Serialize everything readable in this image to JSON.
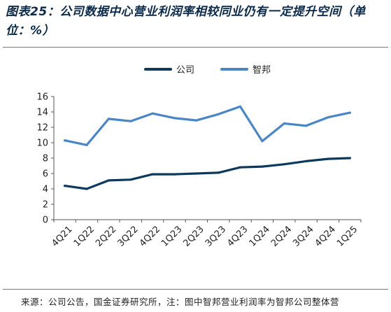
{
  "title": "图表25：公司数据中心营业利润率相较同业仍有一定提升空间（单位：%）",
  "source": "来源：公司公告，国金证券研究所，注：图中智邦营业利润率为智邦公司整体营",
  "chart_data": {
    "type": "line",
    "categories": [
      "4Q21",
      "1Q22",
      "2Q22",
      "3Q22",
      "4Q22",
      "1Q23",
      "2Q23",
      "3Q23",
      "4Q23",
      "1Q24",
      "2Q24",
      "3Q24",
      "4Q24",
      "1Q25"
    ],
    "series": [
      {
        "name": "公司",
        "color": "#0d3a5c",
        "values": [
          4.4,
          4.0,
          5.1,
          5.2,
          5.9,
          5.9,
          6.0,
          6.1,
          6.8,
          6.9,
          7.2,
          7.6,
          7.9,
          8.0
        ]
      },
      {
        "name": "智邦",
        "color": "#4a86c5",
        "values": [
          10.3,
          9.7,
          13.1,
          12.8,
          13.8,
          13.2,
          12.9,
          13.7,
          14.7,
          10.2,
          12.5,
          12.2,
          13.3,
          13.9
        ]
      }
    ],
    "ylim": [
      0,
      16
    ],
    "yticks": [
      0,
      2,
      4,
      6,
      8,
      10,
      12,
      14,
      16
    ],
    "legend_position": "top-center",
    "grid": false
  }
}
